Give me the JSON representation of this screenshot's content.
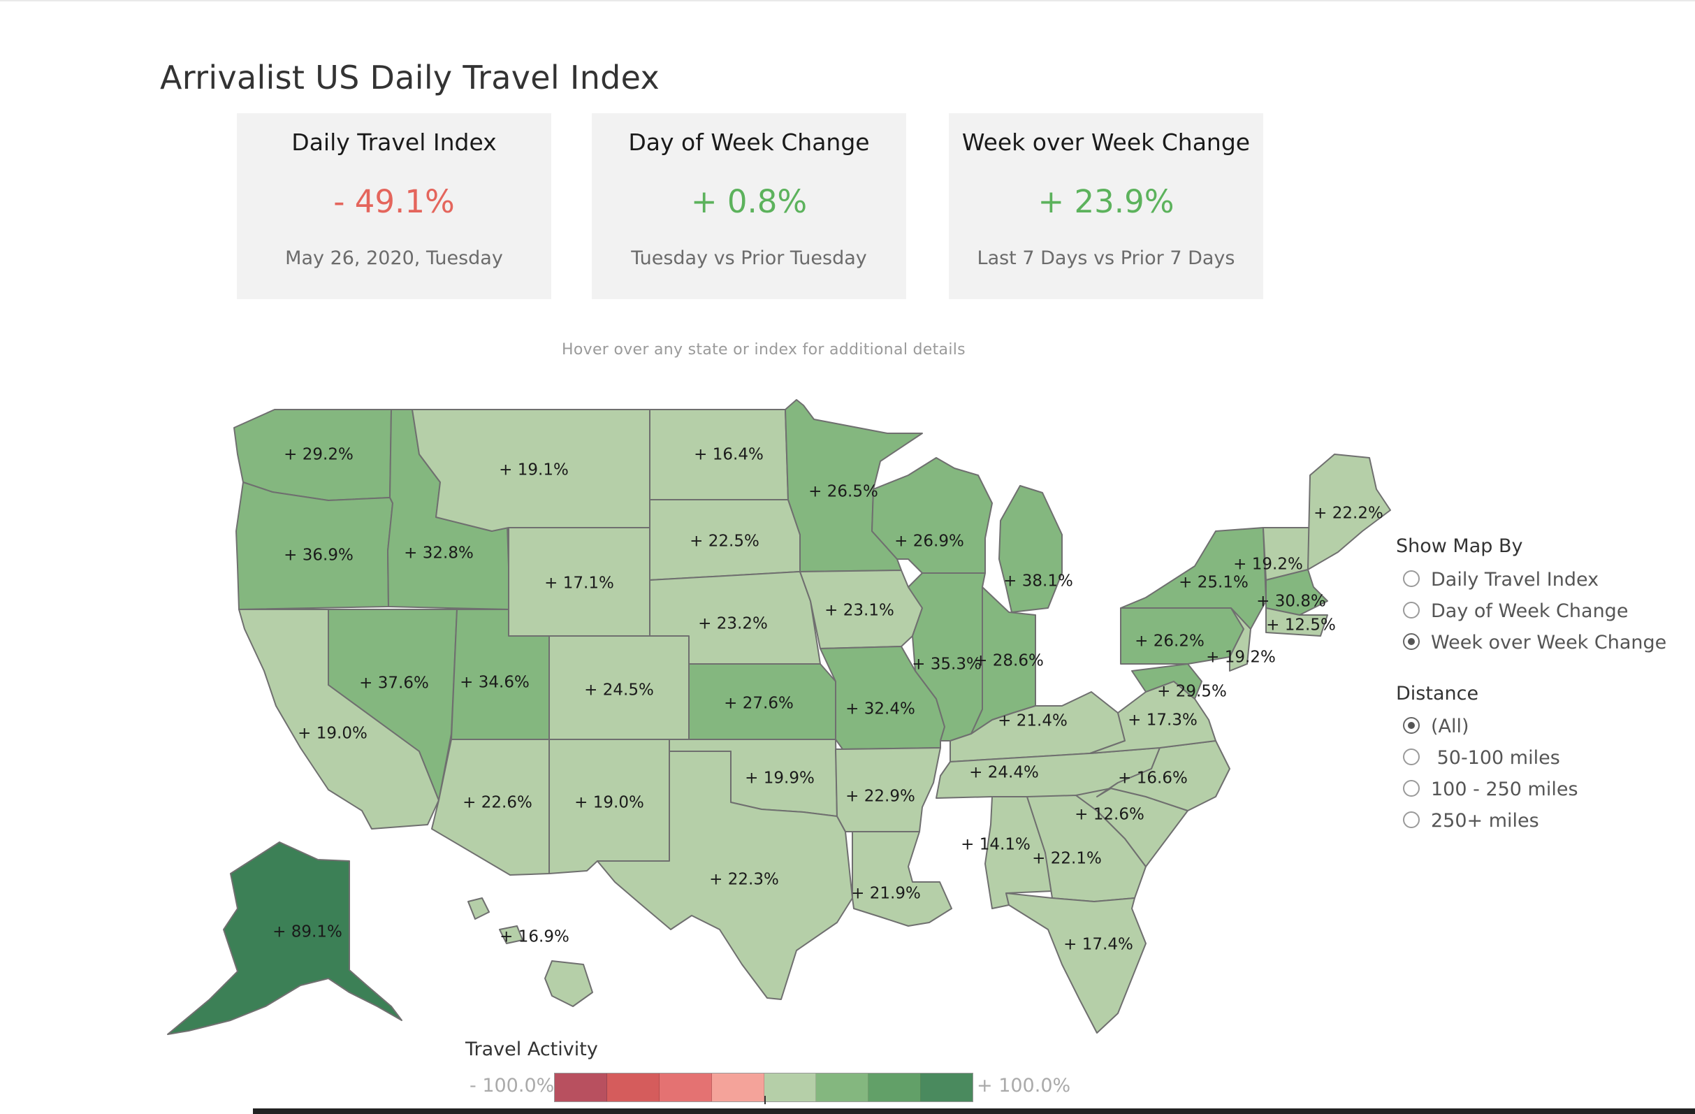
{
  "title": "Arrivalist US Daily Travel Index",
  "kpis": [
    {
      "title": "Daily Travel Index",
      "value": "- 49.1%",
      "subtitle": "May 26, 2020, Tuesday",
      "tone": "negative"
    },
    {
      "title": "Day of Week Change",
      "value": "+ 0.8%",
      "subtitle": "Tuesday vs Prior Tuesday",
      "tone": "positive"
    },
    {
      "title": "Week over Week Change",
      "value": "+ 23.9%",
      "subtitle": "Last 7 Days vs Prior 7 Days",
      "tone": "positive"
    }
  ],
  "hint": "Hover over any state or index for additional details",
  "map": {
    "scale_colors": [
      "#b8505f",
      "#d55c5c",
      "#e47272",
      "#f4a39a",
      "#b5cfa8",
      "#84b77f",
      "#62a068",
      "#4a8a5e"
    ],
    "alaska_color": "#3c8056",
    "states": [
      {
        "label": "+ 29.2%",
        "value": 29.2
      },
      {
        "label": "+ 36.9%",
        "value": 36.9
      },
      {
        "label": "+ 19.0%",
        "value": 19.0
      },
      {
        "label": "+ 37.6%",
        "value": 37.6
      },
      {
        "label": "+ 32.8%",
        "value": 32.8
      },
      {
        "label": "+ 19.1%",
        "value": 19.1
      },
      {
        "label": "+ 17.1%",
        "value": 17.1
      },
      {
        "label": "+ 34.6%",
        "value": 34.6
      },
      {
        "label": "+ 22.6%",
        "value": 22.6
      },
      {
        "label": "+ 24.5%",
        "value": 24.5
      },
      {
        "label": "+ 19.0%",
        "value": 19.0
      },
      {
        "label": "+ 16.4%",
        "value": 16.4
      },
      {
        "label": "+ 22.5%",
        "value": 22.5
      },
      {
        "label": "+ 23.2%",
        "value": 23.2
      },
      {
        "label": "+ 27.6%",
        "value": 27.6
      },
      {
        "label": "+ 19.9%",
        "value": 19.9
      },
      {
        "label": "+ 22.3%",
        "value": 22.3
      },
      {
        "label": "+ 26.5%",
        "value": 26.5
      },
      {
        "label": "+ 23.1%",
        "value": 23.1
      },
      {
        "label": "+ 32.4%",
        "value": 32.4
      },
      {
        "label": "+ 22.9%",
        "value": 22.9
      },
      {
        "label": "+ 21.9%",
        "value": 21.9
      },
      {
        "label": "+ 26.9%",
        "value": 26.9
      },
      {
        "label": "+ 35.3%",
        "value": 35.3
      },
      {
        "label": "+ 38.1%",
        "value": 38.1
      },
      {
        "label": "+ 28.6%",
        "value": 28.6
      },
      {
        "label": "+ 21.4%",
        "value": 21.4
      },
      {
        "label": "+ 24.4%",
        "value": 24.4
      },
      {
        "label": "+ 14.1%",
        "value": 14.1
      },
      {
        "label": "+ 22.1%",
        "value": 22.1
      },
      {
        "label": "+ 17.4%",
        "value": 17.4
      },
      {
        "label": "+ 12.6%",
        "value": 12.6
      },
      {
        "label": "+ 16.6%",
        "value": 16.6
      },
      {
        "label": "+ 17.3%",
        "value": 17.3
      },
      {
        "label": "+ 29.5%",
        "value": 29.5
      },
      {
        "label": "+ 26.2%",
        "value": 26.2
      },
      {
        "label": "+ 19.2%",
        "value": 19.2
      },
      {
        "label": "+ 25.1%",
        "value": 25.1
      },
      {
        "label": "+ 19.2%",
        "value": 19.2
      },
      {
        "label": "+ 22.2%",
        "value": 22.2
      },
      {
        "label": "+ 30.8%",
        "value": 30.8
      },
      {
        "label": "+ 12.5%",
        "value": 12.5
      },
      {
        "label": "+ 89.1%",
        "value": 89.1
      },
      {
        "label": "+ 16.9%",
        "value": 16.9
      }
    ]
  },
  "show_map_by": {
    "heading": "Show Map By",
    "options": [
      {
        "label": "Daily Travel Index",
        "checked": false
      },
      {
        "label": "Day of Week Change",
        "checked": false
      },
      {
        "label": "Week over Week Change",
        "checked": true
      }
    ]
  },
  "distance": {
    "heading": "Distance",
    "options": [
      {
        "label": "(All)",
        "checked": true
      },
      {
        "label": " 50-100 miles",
        "checked": false
      },
      {
        "label": "100 - 250 miles",
        "checked": false
      },
      {
        "label": "250+ miles",
        "checked": false
      }
    ]
  },
  "legend": {
    "title": "Travel Activity",
    "min_label": "- 100.0%",
    "max_label": "+ 100.0%"
  }
}
